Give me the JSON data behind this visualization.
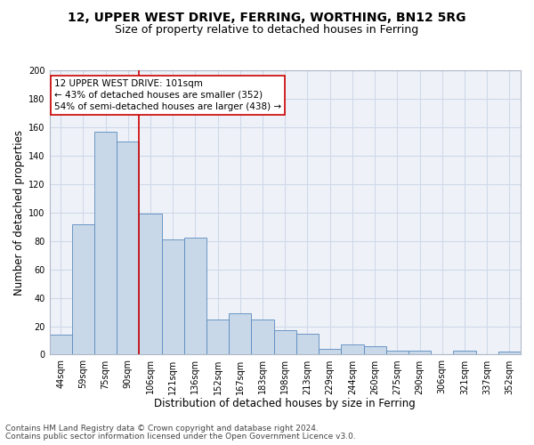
{
  "title": "12, UPPER WEST DRIVE, FERRING, WORTHING, BN12 5RG",
  "subtitle": "Size of property relative to detached houses in Ferring",
  "xlabel": "Distribution of detached houses by size in Ferring",
  "ylabel": "Number of detached properties",
  "categories": [
    "44sqm",
    "59sqm",
    "75sqm",
    "90sqm",
    "106sqm",
    "121sqm",
    "136sqm",
    "152sqm",
    "167sqm",
    "183sqm",
    "198sqm",
    "213sqm",
    "229sqm",
    "244sqm",
    "260sqm",
    "275sqm",
    "290sqm",
    "306sqm",
    "321sqm",
    "337sqm",
    "352sqm"
  ],
  "values": [
    14,
    92,
    157,
    150,
    99,
    81,
    82,
    25,
    29,
    25,
    17,
    15,
    4,
    7,
    6,
    3,
    3,
    0,
    3,
    0,
    2
  ],
  "bar_color": "#c8d8e8",
  "bar_edge_color": "#5a8abf",
  "vline_x_index": 3.5,
  "vline_color": "#cc0000",
  "annotation_text": "12 UPPER WEST DRIVE: 101sqm\n← 43% of detached houses are smaller (352)\n54% of semi-detached houses are larger (438) →",
  "annotation_box_color": "#ffffff",
  "annotation_box_edge_color": "#cc0000",
  "ylim": [
    0,
    200
  ],
  "yticks": [
    0,
    20,
    40,
    60,
    80,
    100,
    120,
    140,
    160,
    180,
    200
  ],
  "grid_color": "#d0d8e8",
  "background_color": "#eef2f8",
  "footer_line1": "Contains HM Land Registry data © Crown copyright and database right 2024.",
  "footer_line2": "Contains public sector information licensed under the Open Government Licence v3.0.",
  "title_fontsize": 10,
  "subtitle_fontsize": 9,
  "xlabel_fontsize": 8.5,
  "ylabel_fontsize": 8.5,
  "tick_fontsize": 7,
  "annotation_fontsize": 7.5,
  "footer_fontsize": 6.5
}
